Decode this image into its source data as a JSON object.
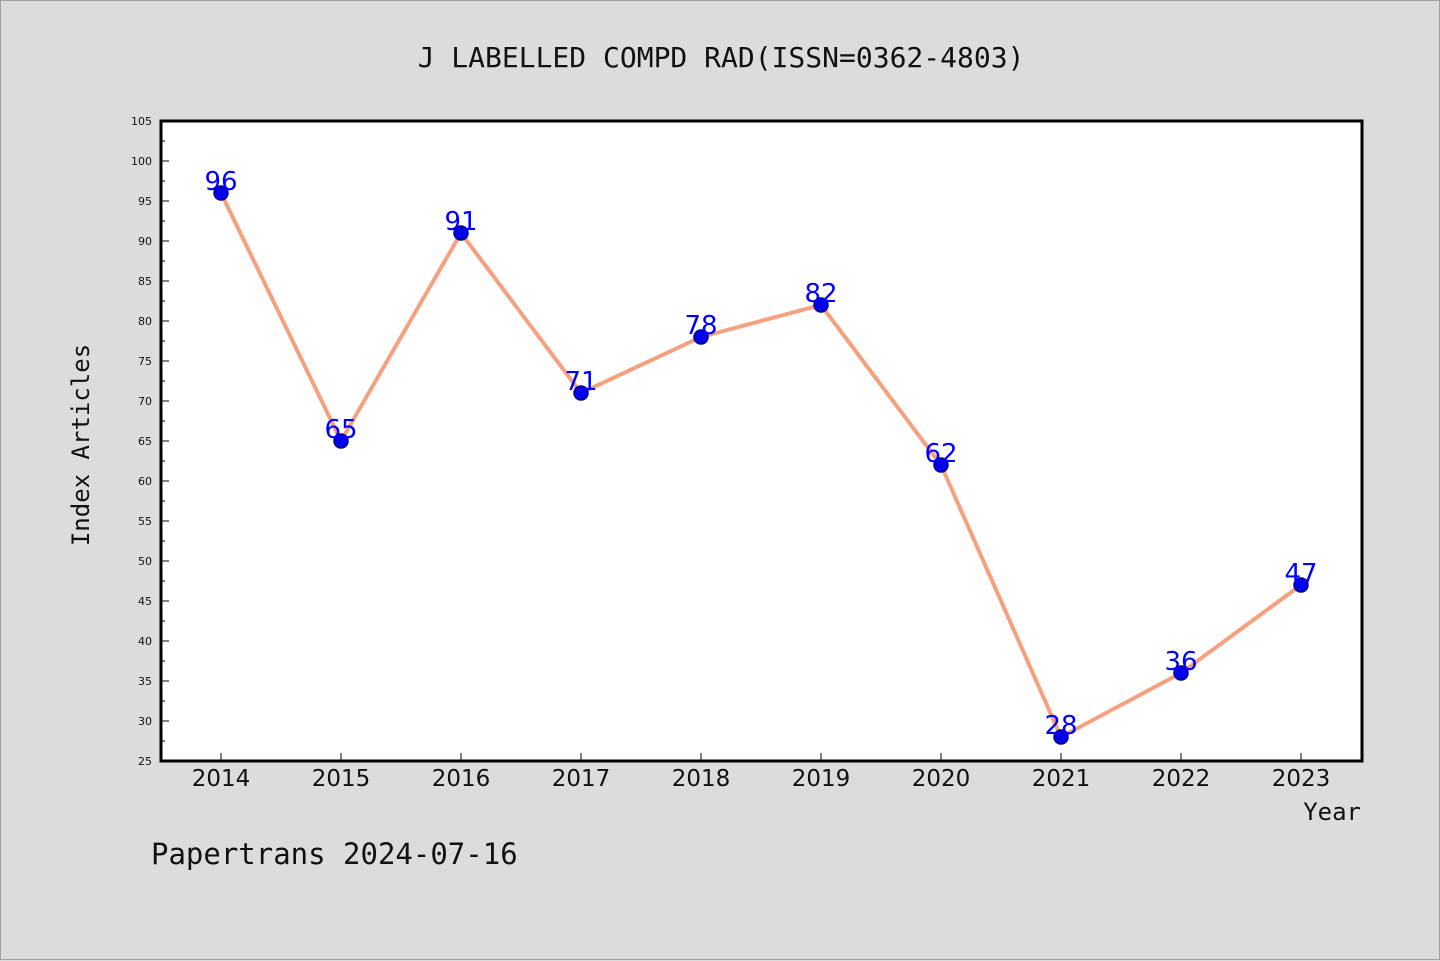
{
  "chart_data": {
    "type": "line",
    "title": "J LABELLED COMPD RAD(ISSN=0362-4803)",
    "xlabel": "Year",
    "ylabel": "Index Articles",
    "footer": "Papertrans 2024-07-16",
    "categories": [
      "2014",
      "2015",
      "2016",
      "2017",
      "2018",
      "2019",
      "2020",
      "2021",
      "2022",
      "2023"
    ],
    "series": [
      {
        "values": [
          96,
          65,
          91,
          71,
          78,
          82,
          62,
          28,
          36,
          47
        ]
      }
    ],
    "ylim": [
      25,
      105
    ],
    "yticks": [
      25,
      30,
      35,
      40,
      45,
      50,
      55,
      60,
      65,
      70,
      75,
      80,
      85,
      90,
      95,
      100,
      105
    ],
    "grid": false,
    "legend": "none",
    "colors": {
      "line": "#f5a07e",
      "marker": "#0000ee",
      "marker_stroke": "#00008b",
      "label": "#0000ff",
      "plot_bg": "#ffffff",
      "page_bg": "#dcdcdc"
    }
  }
}
